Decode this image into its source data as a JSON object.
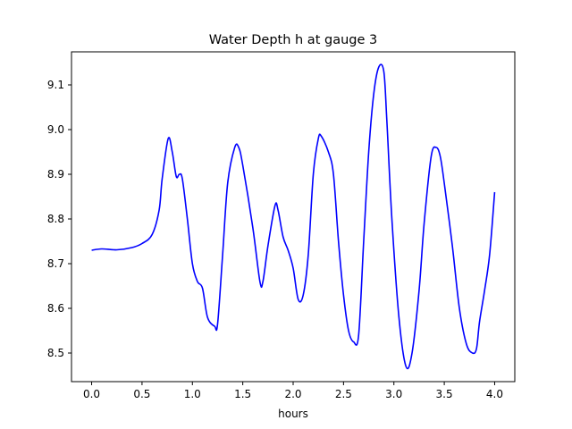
{
  "chart_data": {
    "type": "line",
    "title": "Water Depth h at gauge 3",
    "xlabel": "hours",
    "ylabel": "",
    "xlim": [
      -0.2,
      4.2
    ],
    "ylim": [
      8.436,
      9.174
    ],
    "grid": false,
    "legend": "none",
    "x_ticks": [
      0.0,
      0.5,
      1.0,
      1.5,
      2.0,
      2.5,
      3.0,
      3.5,
      4.0
    ],
    "x_tick_labels": [
      "0.0",
      "0.5",
      "1.0",
      "1.5",
      "2.0",
      "2.5",
      "3.0",
      "3.5",
      "4.0"
    ],
    "y_ticks": [
      8.5,
      8.6,
      8.7,
      8.8,
      8.9,
      9.0,
      9.1
    ],
    "y_tick_labels": [
      "8.5",
      "8.6",
      "8.7",
      "8.8",
      "8.9",
      "9.0",
      "9.1"
    ],
    "series": [
      {
        "color": "#0000ff",
        "x": [
          0.0,
          0.1,
          0.25,
          0.4,
          0.5,
          0.6,
          0.67,
          0.7,
          0.76,
          0.8,
          0.84,
          0.87,
          0.9,
          0.95,
          1.0,
          1.05,
          1.1,
          1.15,
          1.22,
          1.25,
          1.3,
          1.35,
          1.42,
          1.46,
          1.5,
          1.6,
          1.67,
          1.7,
          1.75,
          1.82,
          1.85,
          1.9,
          1.95,
          2.0,
          2.05,
          2.1,
          2.15,
          2.2,
          2.25,
          2.28,
          2.35,
          2.4,
          2.45,
          2.5,
          2.55,
          2.6,
          2.65,
          2.7,
          2.75,
          2.8,
          2.85,
          2.9,
          2.93,
          2.98,
          3.05,
          3.12,
          3.18,
          3.25,
          3.3,
          3.37,
          3.42,
          3.46,
          3.5,
          3.58,
          3.65,
          3.72,
          3.78,
          3.82,
          3.85,
          3.9,
          3.95,
          4.0
        ],
        "y": [
          8.73,
          8.733,
          8.731,
          8.736,
          8.745,
          8.765,
          8.82,
          8.89,
          8.98,
          8.95,
          8.895,
          8.9,
          8.89,
          8.8,
          8.7,
          8.66,
          8.645,
          8.58,
          8.56,
          8.565,
          8.72,
          8.88,
          8.96,
          8.96,
          8.92,
          8.78,
          8.66,
          8.66,
          8.74,
          8.83,
          8.82,
          8.76,
          8.73,
          8.69,
          8.62,
          8.63,
          8.72,
          8.9,
          8.98,
          8.985,
          8.95,
          8.9,
          8.75,
          8.63,
          8.55,
          8.525,
          8.54,
          8.75,
          8.95,
          9.08,
          9.14,
          9.13,
          9.02,
          8.8,
          8.58,
          8.47,
          8.5,
          8.64,
          8.79,
          8.94,
          8.96,
          8.94,
          8.88,
          8.74,
          8.6,
          8.52,
          8.5,
          8.51,
          8.57,
          8.64,
          8.72,
          8.86
        ]
      }
    ]
  }
}
